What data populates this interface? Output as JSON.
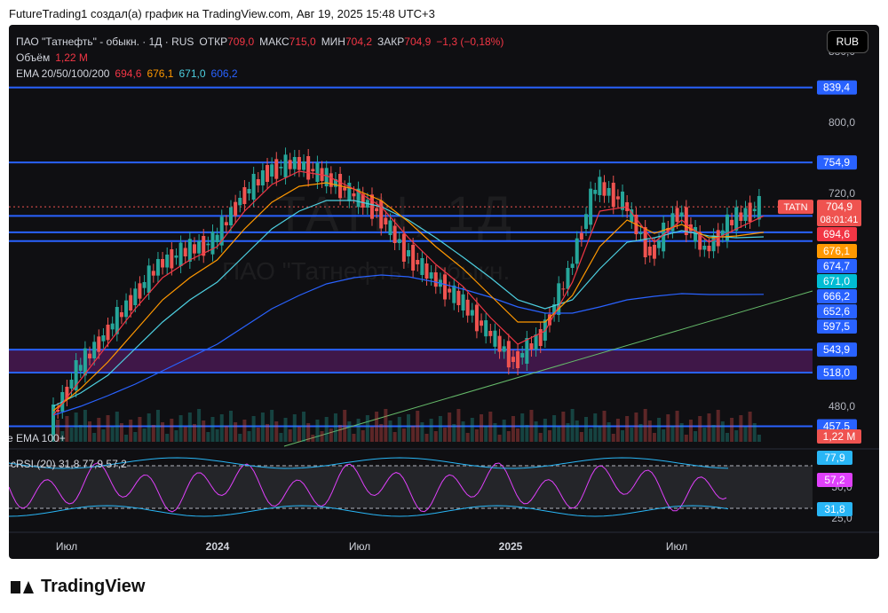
{
  "header": {
    "title": "FutureTrading1 создал(а) график на TradingView.com, Авг 19, 2025 15:48 UTC+3"
  },
  "legend": {
    "symbol": "ПАО \"Татнефть\" - обыкн. · 1Д · RUS",
    "open_label": "ОТКР",
    "open": "709,0",
    "high_label": "МАКС",
    "high": "715,0",
    "low_label": "МИН",
    "low": "704,2",
    "close_label": "ЗАКР",
    "close": "704,9",
    "change": "−1,3 (−0,18%)",
    "volume_label": "Объём",
    "volume": "1,22 M",
    "ema_label": "EMA 20/50/100/200",
    "ema20": "694,6",
    "ema50": "676,1",
    "ema100": "671,0",
    "ema200": "606,2"
  },
  "currency_button": "RUB",
  "watermark": {
    "ticker": "TATN, 1Д",
    "name": "ПАО \"Татнефть\" - обыкн."
  },
  "colors": {
    "bg": "#0f0f12",
    "up": "#26a69a",
    "down": "#ef5350",
    "level": "#2962ff",
    "ema20": "#f23645",
    "ema50": "#ff9800",
    "ema100": "#4dd0e1",
    "ema200": "#2962ff",
    "trend": "#66bb6a",
    "rsi": "#e040fb",
    "rsi_band": "#29b6f6"
  },
  "chart_data": {
    "type": "line",
    "title": "ПАО \"Татнефть\" - обыкн. · 1Д · RUS",
    "x_ticks": [
      "Июл",
      "2024",
      "Июл",
      "2025",
      "Июл"
    ],
    "y_ticks": [
      "880,0",
      "800,0",
      "720,0",
      "480,0"
    ],
    "ylim": [
      440,
      890
    ],
    "price_series": {
      "name": "TATN",
      "x": [
        "2023-06",
        "2023-07",
        "2023-08",
        "2023-09",
        "2023-10",
        "2023-11",
        "2023-12",
        "2024-01",
        "2024-02",
        "2024-03",
        "2024-04",
        "2024-05",
        "2024-06",
        "2024-07",
        "2024-08",
        "2024-09",
        "2024-10",
        "2024-11",
        "2024-12",
        "2025-01",
        "2025-02",
        "2025-03",
        "2025-04",
        "2025-05",
        "2025-06",
        "2025-07",
        "2025-08"
      ],
      "values": [
        460,
        520,
        560,
        600,
        640,
        655,
        665,
        715,
        745,
        755,
        740,
        720,
        700,
        655,
        625,
        600,
        565,
        530,
        560,
        630,
        730,
        710,
        650,
        700,
        655,
        690,
        705
      ]
    },
    "ema20": [
      470,
      510,
      550,
      590,
      625,
      645,
      660,
      700,
      730,
      745,
      740,
      725,
      705,
      670,
      640,
      615,
      580,
      550,
      565,
      620,
      700,
      705,
      665,
      690,
      665,
      680,
      694.6
    ],
    "ema50": [
      475,
      500,
      530,
      565,
      600,
      625,
      645,
      680,
      710,
      728,
      732,
      725,
      712,
      688,
      660,
      635,
      605,
      575,
      575,
      605,
      660,
      690,
      675,
      685,
      670,
      672,
      676.1
    ],
    "ema100": [
      480,
      495,
      515,
      545,
      575,
      600,
      620,
      650,
      680,
      700,
      712,
      712,
      705,
      690,
      670,
      648,
      625,
      600,
      590,
      600,
      635,
      665,
      670,
      678,
      672,
      670,
      671.0
    ],
    "ema200": [
      470,
      480,
      492,
      505,
      520,
      535,
      550,
      570,
      590,
      605,
      618,
      625,
      628,
      626,
      620,
      612,
      603,
      592,
      585,
      585,
      592,
      600,
      604,
      607,
      606,
      606,
      606.2
    ],
    "levels": [
      {
        "label": "839,4",
        "value": 839.4
      },
      {
        "label": "754,9",
        "value": 754.9
      },
      {
        "label": "694,6",
        "value": 694.6
      },
      {
        "label": "676,1",
        "value": 676.1
      },
      {
        "label": "674,7",
        "value": 674.7
      },
      {
        "label": "671,0",
        "value": 671.0
      },
      {
        "label": "666,2",
        "value": 666.2
      },
      {
        "label": "652,6",
        "value": 652.6
      },
      {
        "label": "597,5",
        "value": 597.5
      },
      {
        "label": "543,9",
        "value": 543.9
      },
      {
        "label": "518,0",
        "value": 518.0
      },
      {
        "label": "457,5",
        "value": 457.5
      }
    ],
    "current": {
      "ticker": "TATN",
      "price": "704,9",
      "countdown": "08:01:41"
    },
    "volume_label": "1,22 M",
    "ema_overlay_label": "e EMA 100+",
    "rsi": {
      "label": "cRSI (20)",
      "values_label": "31,8  77,9  57,2",
      "upper": "77,9",
      "value": "57,2",
      "lower": "31,8",
      "axis_ticks": [
        "50,0",
        "25,0"
      ]
    }
  }
}
